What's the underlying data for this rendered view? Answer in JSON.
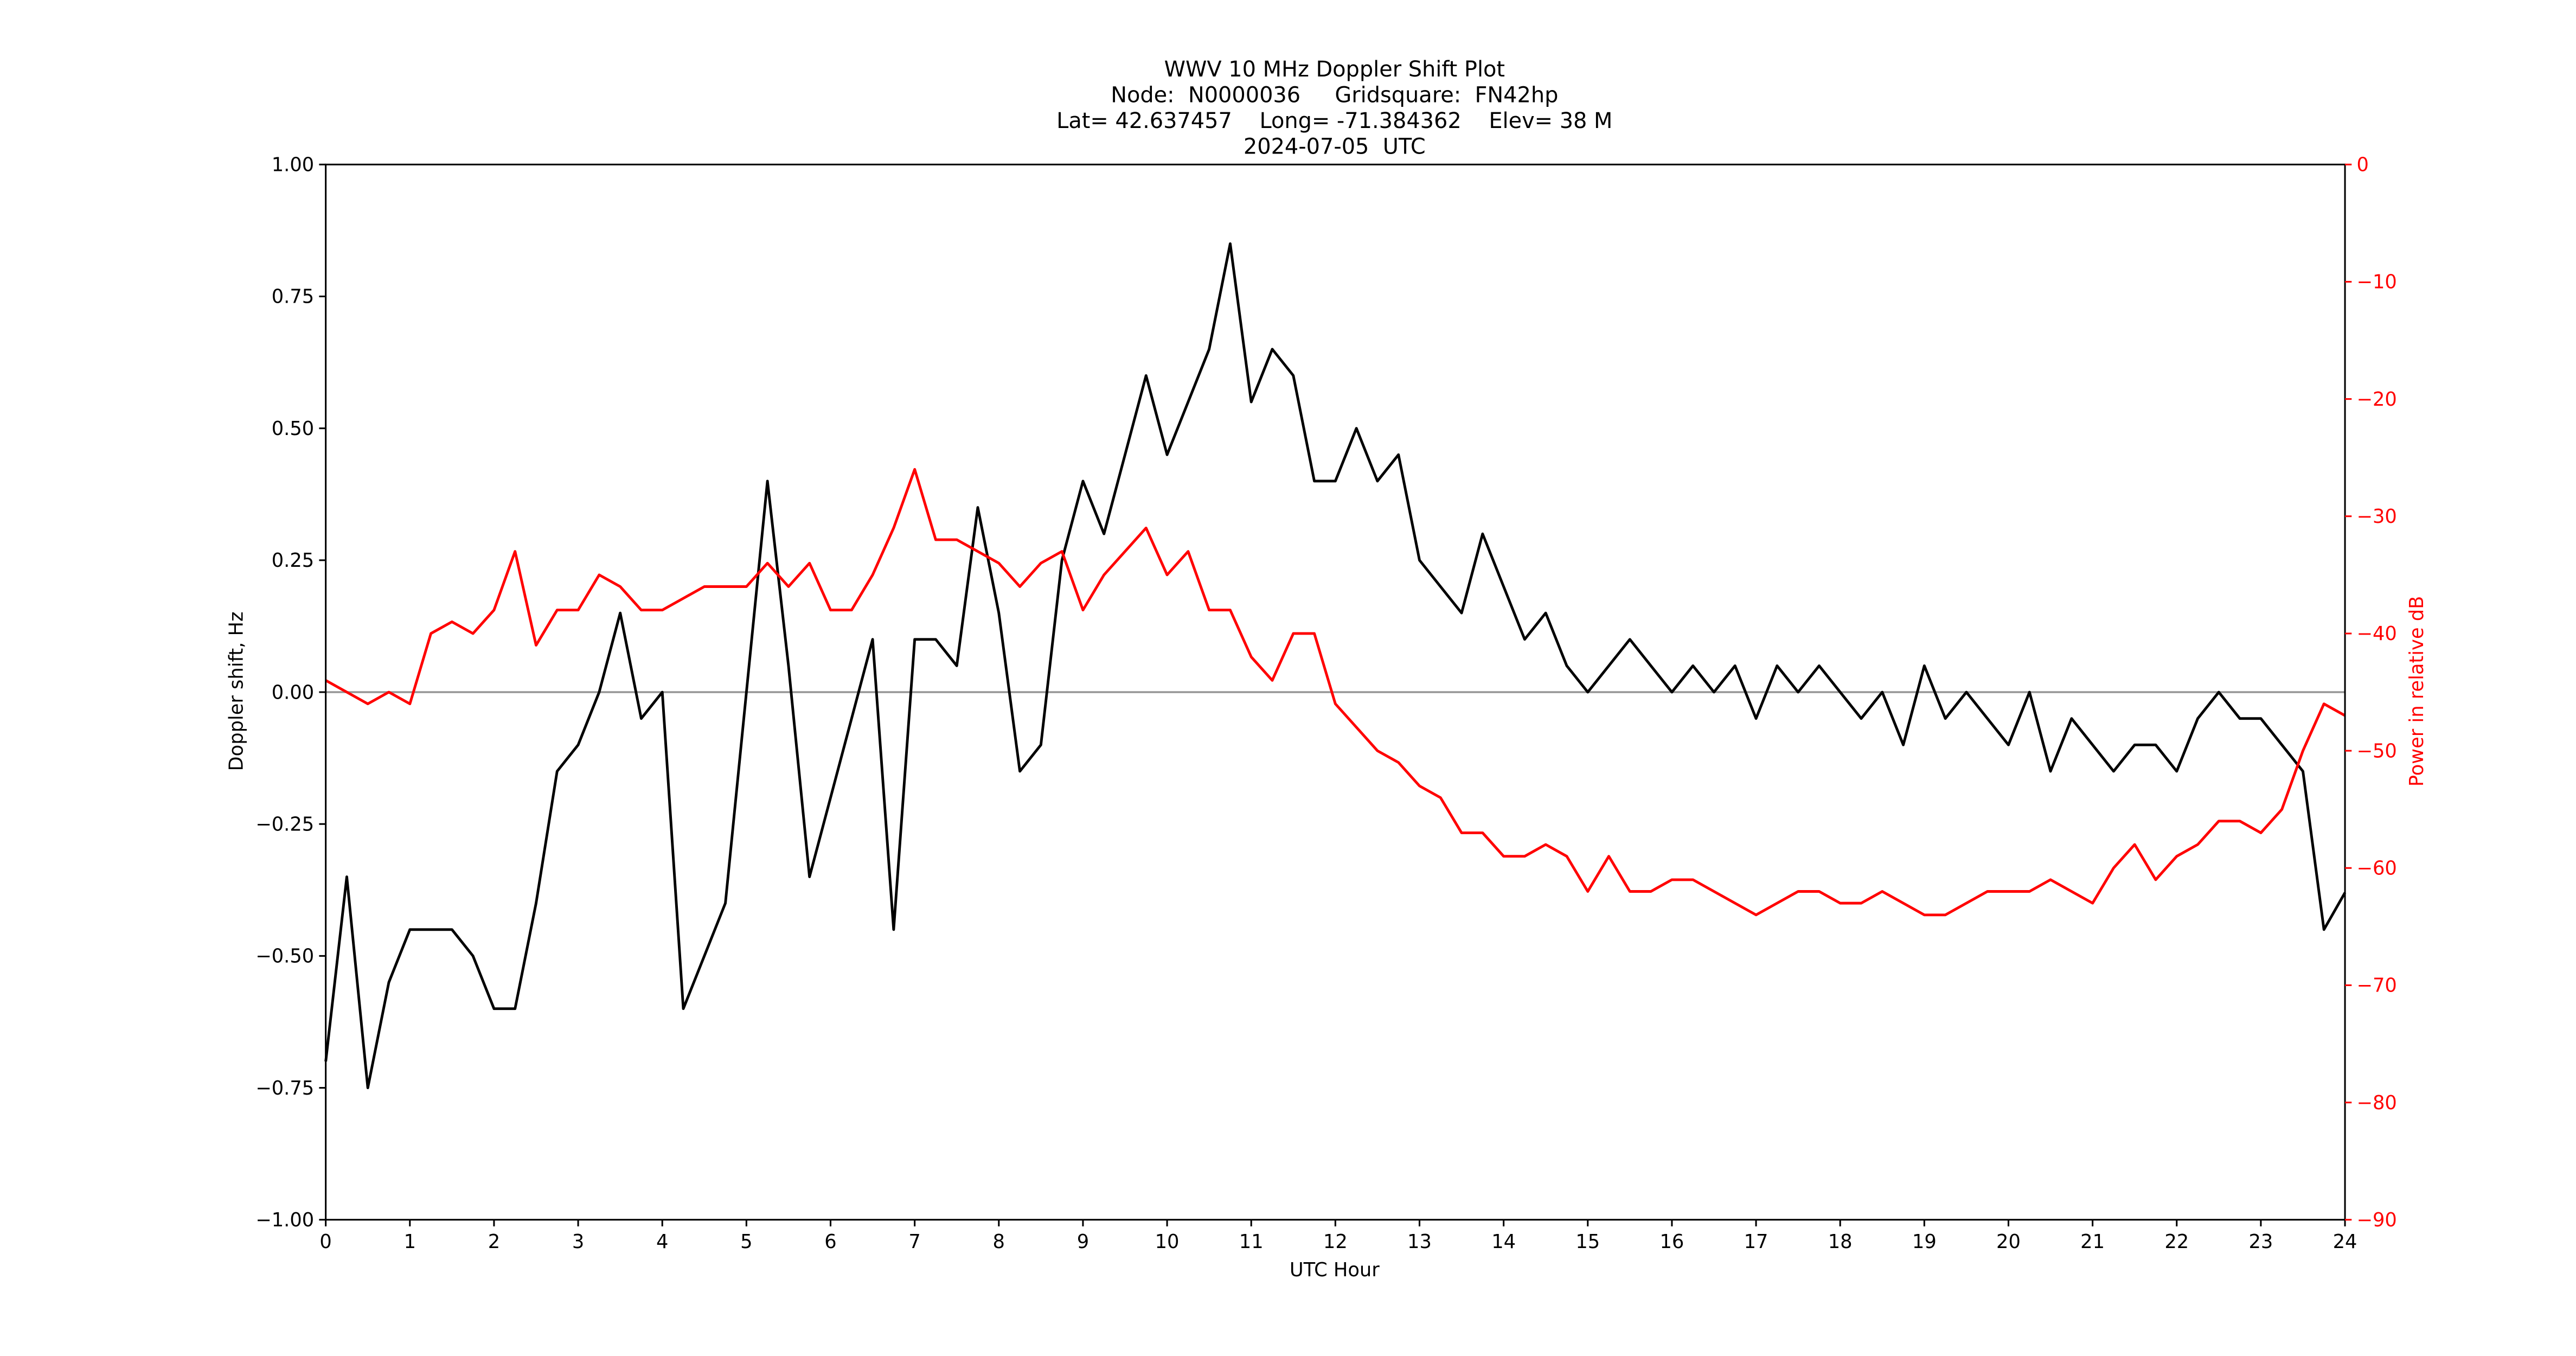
{
  "chart_data": {
    "type": "line",
    "title": [
      "WWV 10 MHz Doppler Shift Plot",
      "Node:  N0000036     Gridsquare:  FN42hp",
      "Lat= 42.637457    Long= -71.384362    Elev= 38 M",
      "2024-07-05  UTC"
    ],
    "xlabel": "UTC Hour",
    "ylabel": "Doppler shift, Hz",
    "y2label": "Power in relative dB",
    "x": [
      0,
      0.25,
      0.5,
      0.75,
      1,
      1.25,
      1.5,
      1.75,
      2,
      2.25,
      2.5,
      2.75,
      3,
      3.25,
      3.5,
      3.75,
      4,
      4.25,
      4.5,
      4.75,
      5,
      5.25,
      5.5,
      5.75,
      6,
      6.25,
      6.5,
      6.75,
      7,
      7.25,
      7.5,
      7.75,
      8,
      8.25,
      8.5,
      8.75,
      9,
      9.25,
      9.5,
      9.75,
      10,
      10.25,
      10.5,
      10.75,
      11,
      11.25,
      11.5,
      11.75,
      12,
      12.25,
      12.5,
      12.75,
      13,
      13.25,
      13.5,
      13.75,
      14,
      14.25,
      14.5,
      14.75,
      15,
      15.25,
      15.5,
      15.75,
      16,
      16.25,
      16.5,
      16.75,
      17,
      17.25,
      17.5,
      17.75,
      18,
      18.25,
      18.5,
      18.75,
      19,
      19.25,
      19.5,
      19.75,
      20,
      20.25,
      20.5,
      20.75,
      21,
      21.25,
      21.5,
      21.75,
      22,
      22.25,
      22.5,
      22.75,
      23,
      23.25,
      23.5,
      23.75,
      24
    ],
    "series": [
      {
        "name": "Doppler shift",
        "color": "#000000",
        "axis": "y",
        "values": [
          -0.7,
          -0.35,
          -0.75,
          -0.55,
          -0.45,
          -0.45,
          -0.45,
          -0.5,
          -0.6,
          -0.6,
          -0.4,
          -0.15,
          -0.1,
          0.0,
          0.15,
          -0.05,
          0.0,
          -0.6,
          -0.5,
          -0.4,
          0.0,
          0.4,
          0.05,
          -0.35,
          -0.2,
          -0.05,
          0.1,
          -0.45,
          0.1,
          0.1,
          0.05,
          0.35,
          0.15,
          -0.15,
          -0.1,
          0.25,
          0.4,
          0.3,
          0.45,
          0.6,
          0.45,
          0.55,
          0.65,
          0.85,
          0.55,
          0.65,
          0.6,
          0.4,
          0.4,
          0.5,
          0.4,
          0.45,
          0.25,
          0.2,
          0.15,
          0.3,
          0.2,
          0.1,
          0.15,
          0.05,
          0.0,
          0.05,
          0.1,
          0.05,
          0.0,
          0.05,
          0.0,
          0.05,
          -0.05,
          0.05,
          0.0,
          0.05,
          0.0,
          -0.05,
          0.0,
          -0.1,
          0.05,
          -0.05,
          0.0,
          -0.05,
          -0.1,
          0.0,
          -0.15,
          -0.05,
          -0.1,
          -0.15,
          -0.1,
          -0.1,
          -0.15,
          -0.05,
          0.0,
          -0.05,
          -0.05,
          -0.1,
          -0.15,
          -0.45,
          -0.38
        ]
      },
      {
        "name": "Power",
        "color": "#ff0000",
        "axis": "y2",
        "values": [
          -44,
          -45,
          -46,
          -45,
          -46,
          -40,
          -39,
          -40,
          -38,
          -33,
          -41,
          -38,
          -38,
          -35,
          -36,
          -38,
          -38,
          -37,
          -36,
          -36,
          -36,
          -34,
          -36,
          -34,
          -38,
          -38,
          -35,
          -31,
          -26,
          -32,
          -32,
          -33,
          -34,
          -36,
          -34,
          -33,
          -38,
          -35,
          -33,
          -31,
          -35,
          -33,
          -38,
          -38,
          -42,
          -44,
          -40,
          -40,
          -46,
          -48,
          -50,
          -51,
          -53,
          -54,
          -57,
          -57,
          -59,
          -59,
          -58,
          -59,
          -62,
          -59,
          -62,
          -62,
          -61,
          -61,
          -62,
          -63,
          -64,
          -63,
          -62,
          -62,
          -63,
          -63,
          -62,
          -63,
          -64,
          -64,
          -63,
          -62,
          -62,
          -62,
          -61,
          -62,
          -63,
          -60,
          -58,
          -61,
          -59,
          -58,
          -56,
          -56,
          -57,
          -55,
          -50,
          -46,
          -47
        ]
      }
    ],
    "xlim": [
      0,
      24
    ],
    "xticks": [
      0,
      1,
      2,
      3,
      4,
      5,
      6,
      7,
      8,
      9,
      10,
      11,
      12,
      13,
      14,
      15,
      16,
      17,
      18,
      19,
      20,
      21,
      22,
      23,
      24
    ],
    "ylim": [
      -1,
      1
    ],
    "yticks": [
      {
        "value": -1,
        "label": "−1.00"
      },
      {
        "value": -0.75,
        "label": "−0.75"
      },
      {
        "value": -0.5,
        "label": "−0.50"
      },
      {
        "value": -0.25,
        "label": "−0.25"
      },
      {
        "value": 0,
        "label": "0.00"
      },
      {
        "value": 0.25,
        "label": "0.25"
      },
      {
        "value": 0.5,
        "label": "0.50"
      },
      {
        "value": 0.75,
        "label": "0.75"
      },
      {
        "value": 1,
        "label": "1.00"
      }
    ],
    "y2lim": [
      -90,
      0
    ],
    "y2ticks": [
      {
        "value": -90,
        "label": "−90"
      },
      {
        "value": -80,
        "label": "−80"
      },
      {
        "value": -70,
        "label": "−70"
      },
      {
        "value": -60,
        "label": "−60"
      },
      {
        "value": -50,
        "label": "−50"
      },
      {
        "value": -40,
        "label": "−40"
      },
      {
        "value": -30,
        "label": "−30"
      },
      {
        "value": -20,
        "label": "−20"
      },
      {
        "value": -10,
        "label": "−10"
      },
      0
    ],
    "y2color": "#ff0000",
    "hlines": [
      0
    ],
    "hline_color": "#999999",
    "grid": false
  }
}
